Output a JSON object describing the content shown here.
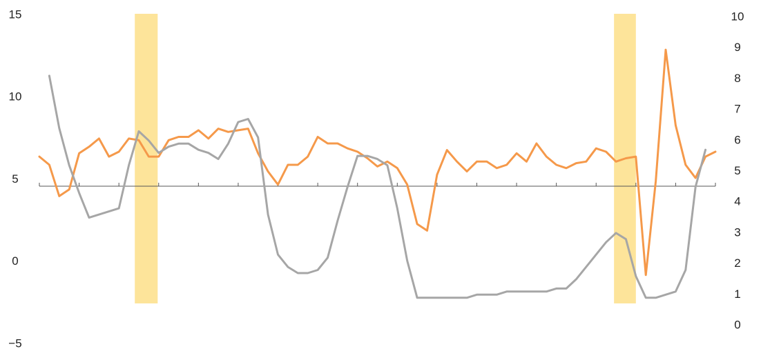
{
  "chart_data": {
    "type": "line",
    "categories": [
      null,
      null,
      null,
      null,
      null,
      null,
      null,
      null,
      null,
      null,
      null,
      null,
      null,
      null,
      null,
      null,
      null,
      null,
      null,
      null,
      null,
      null,
      null,
      null,
      null,
      null,
      null,
      null,
      null,
      null,
      null,
      null,
      null,
      null,
      null,
      null,
      null,
      null,
      null,
      null,
      null,
      null,
      null,
      null,
      null,
      null,
      null,
      null,
      null,
      null,
      null,
      null,
      null,
      null,
      null,
      null,
      null,
      null,
      null,
      null,
      null,
      null,
      null,
      null,
      null,
      null,
      null,
      null,
      null
    ],
    "series": [
      {
        "color": "#f5994a",
        "axis": "y",
        "values": [
          6.4,
          5.9,
          4.0,
          4.4,
          6.6,
          7.0,
          7.5,
          6.4,
          6.7,
          7.5,
          7.4,
          6.4,
          6.4,
          7.4,
          7.6,
          7.6,
          8.0,
          7.5,
          8.1,
          7.9,
          8.0,
          8.1,
          6.6,
          5.5,
          4.7,
          5.9,
          5.9,
          6.4,
          7.6,
          7.2,
          7.2,
          6.9,
          6.7,
          6.3,
          5.8,
          6.1,
          5.7,
          4.7,
          2.3,
          1.9,
          5.3,
          6.8,
          6.1,
          5.5,
          6.1,
          6.1,
          5.7,
          5.9,
          6.6,
          6.1,
          7.2,
          6.4,
          5.9,
          5.7,
          6.0,
          6.1,
          6.9,
          6.7,
          6.1,
          6.3,
          6.4,
          -0.8,
          4.9,
          12.9,
          8.3,
          5.9,
          5.1,
          6.4,
          6.7
        ]
      },
      {
        "color": "#a6a6a6",
        "axis": "y2",
        "values": [
          null,
          8.1,
          6.4,
          5.2,
          4.3,
          3.5,
          3.6,
          3.7,
          3.8,
          5.2,
          6.3,
          6.0,
          5.6,
          5.8,
          5.9,
          5.9,
          5.7,
          5.6,
          5.4,
          5.9,
          6.6,
          6.7,
          6.1,
          3.6,
          2.3,
          1.9,
          1.7,
          1.7,
          1.8,
          2.2,
          3.4,
          4.5,
          5.5,
          5.5,
          5.4,
          5.2,
          3.8,
          2.1,
          0.9,
          0.9,
          0.9,
          0.9,
          0.9,
          0.9,
          1.0,
          1.0,
          1.0,
          1.1,
          1.1,
          1.1,
          1.1,
          1.1,
          1.2,
          1.2,
          1.5,
          1.9,
          2.3,
          2.7,
          3.0,
          2.8,
          1.6,
          0.9,
          0.9,
          1.0,
          1.1,
          1.8,
          4.5,
          5.7,
          null
        ]
      }
    ],
    "shaded_spans": [
      [
        9.6,
        11.9
      ],
      [
        57.8,
        60.0
      ]
    ],
    "shade_color": "#fde49a",
    "ylim": [
      -5,
      15
    ],
    "yticks": [
      {
        "value": -5,
        "label": "−5"
      },
      0,
      5,
      10,
      15
    ],
    "y2lim": [
      0,
      10
    ],
    "y2ticks": [
      0,
      1,
      2,
      3,
      4,
      5,
      6,
      7,
      8,
      9,
      10
    ]
  }
}
